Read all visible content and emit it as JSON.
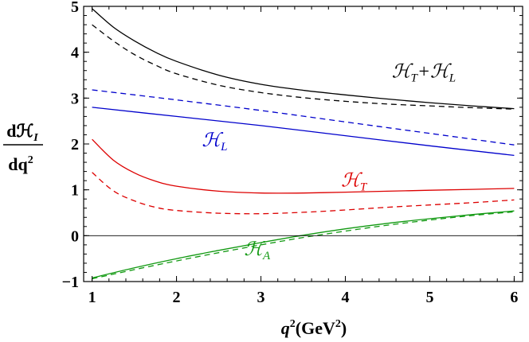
{
  "chart_data": {
    "type": "line",
    "title": "",
    "xlabel": {
      "main": "q",
      "sup": "2",
      "rest": "(GeV",
      "unitsup": "2",
      "close": ")"
    },
    "ylabel": {
      "numerator": "dℋ",
      "numerator_sub": "I",
      "denominator": "dq",
      "denominator_sup": "2"
    },
    "xlim": [
      0.9,
      6.1
    ],
    "ylim": [
      -1,
      5
    ],
    "xticks": [
      1,
      2,
      3,
      4,
      5,
      6
    ],
    "yticks": [
      -1,
      0,
      1,
      2,
      3,
      4,
      5
    ],
    "zero_line": true,
    "grid": false,
    "series": [
      {
        "name": "ℋT+ℋL",
        "label_parts": [
          {
            "t": "ℋ"
          },
          {
            "sub": "T"
          },
          {
            "t": "+ℋ"
          },
          {
            "sub": "L"
          }
        ],
        "color": "#000000",
        "solid": {
          "x": [
            1,
            1.25,
            1.5,
            1.75,
            2,
            2.5,
            3,
            3.5,
            4,
            4.5,
            5,
            5.5,
            6
          ],
          "y": [
            4.95,
            4.55,
            4.25,
            4.0,
            3.8,
            3.5,
            3.3,
            3.17,
            3.07,
            2.98,
            2.9,
            2.83,
            2.77
          ]
        },
        "dashed": {
          "x": [
            1,
            1.25,
            1.5,
            1.75,
            2,
            2.5,
            3,
            3.5,
            4,
            4.5,
            5,
            5.5,
            6
          ],
          "y": [
            4.6,
            4.25,
            3.95,
            3.72,
            3.53,
            3.28,
            3.12,
            3.01,
            2.93,
            2.87,
            2.83,
            2.79,
            2.76
          ]
        }
      },
      {
        "name": "ℋL",
        "label_parts": [
          {
            "t": "ℋ"
          },
          {
            "sub": "L"
          }
        ],
        "color": "#0000cc",
        "solid": {
          "x": [
            1,
            2,
            3,
            4,
            5,
            6
          ],
          "y": [
            2.8,
            2.6,
            2.4,
            2.18,
            1.96,
            1.75
          ]
        },
        "dashed": {
          "x": [
            1,
            2,
            3,
            4,
            5,
            6
          ],
          "y": [
            3.18,
            2.96,
            2.73,
            2.48,
            2.23,
            1.98
          ]
        }
      },
      {
        "name": "ℋT",
        "label_parts": [
          {
            "t": "ℋ"
          },
          {
            "sub": "T"
          }
        ],
        "color": "#dd0000",
        "solid": {
          "x": [
            1,
            1.25,
            1.5,
            1.75,
            2,
            2.5,
            3,
            3.5,
            4,
            4.5,
            5,
            5.5,
            6
          ],
          "y": [
            2.1,
            1.65,
            1.37,
            1.19,
            1.08,
            0.97,
            0.93,
            0.93,
            0.95,
            0.97,
            0.99,
            1.01,
            1.03
          ]
        },
        "dashed": {
          "x": [
            1,
            1.25,
            1.5,
            1.75,
            2,
            2.5,
            3,
            3.5,
            4,
            4.5,
            5,
            5.5,
            6
          ],
          "y": [
            1.38,
            0.98,
            0.76,
            0.62,
            0.55,
            0.49,
            0.48,
            0.51,
            0.56,
            0.62,
            0.67,
            0.72,
            0.78
          ]
        }
      },
      {
        "name": "ℋA",
        "label_parts": [
          {
            "t": "ℋ"
          },
          {
            "sub": "A"
          }
        ],
        "color": "#119911",
        "solid": {
          "x": [
            1,
            1.5,
            2,
            2.5,
            3,
            3.5,
            4,
            4.5,
            5,
            5.5,
            6
          ],
          "y": [
            -0.92,
            -0.7,
            -0.5,
            -0.32,
            -0.15,
            0.01,
            0.15,
            0.27,
            0.37,
            0.46,
            0.54
          ]
        },
        "dashed": {
          "x": [
            1,
            1.5,
            2,
            2.5,
            3,
            3.5,
            4,
            4.5,
            5,
            5.5,
            6
          ],
          "y": [
            -0.94,
            -0.74,
            -0.55,
            -0.37,
            -0.2,
            -0.04,
            0.1,
            0.23,
            0.34,
            0.44,
            0.52
          ]
        }
      }
    ]
  }
}
